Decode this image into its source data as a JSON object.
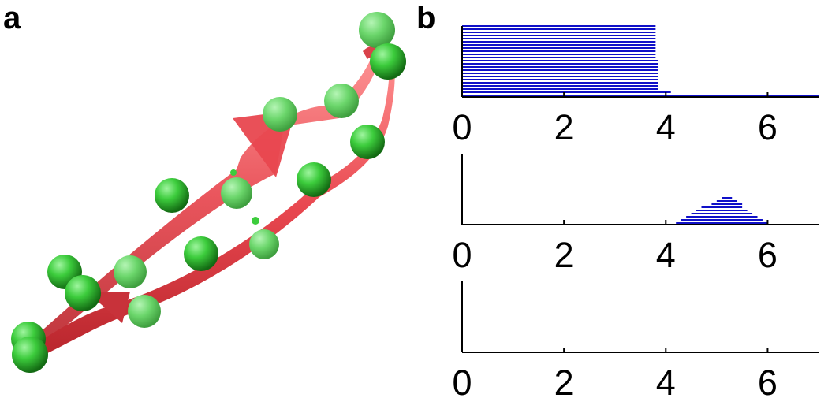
{
  "figure": {
    "panel_a_label": "a",
    "panel_b_label": "b"
  },
  "structure": {
    "ribbon_color": "#e8474f",
    "bead_color": "#2fb52f"
  },
  "chart_data": [
    {
      "type": "bar",
      "orientation": "horizontal",
      "xlim": [
        0,
        7
      ],
      "xticks": [
        0,
        2,
        4,
        6
      ],
      "tick_labels": [
        "0",
        "2",
        "4",
        "6"
      ],
      "color": "#1010c8",
      "segments": [
        {
          "start": 0,
          "end": 3.8
        },
        {
          "start": 0,
          "end": 3.8
        },
        {
          "start": 0,
          "end": 3.8
        },
        {
          "start": 0,
          "end": 3.8
        },
        {
          "start": 0,
          "end": 3.8
        },
        {
          "start": 0,
          "end": 3.8
        },
        {
          "start": 0,
          "end": 3.8
        },
        {
          "start": 0,
          "end": 3.8
        },
        {
          "start": 0,
          "end": 3.8
        },
        {
          "start": 0,
          "end": 3.8
        },
        {
          "start": 0,
          "end": 3.8
        },
        {
          "start": 0,
          "end": 3.85
        },
        {
          "start": 0,
          "end": 3.85
        },
        {
          "start": 0,
          "end": 3.85
        },
        {
          "start": 0,
          "end": 3.85
        },
        {
          "start": 0,
          "end": 3.85
        },
        {
          "start": 0,
          "end": 3.85
        },
        {
          "start": 0,
          "end": 3.85
        },
        {
          "start": 0,
          "end": 3.85
        },
        {
          "start": 0,
          "end": 3.85
        },
        {
          "start": 0,
          "end": 3.85
        },
        {
          "start": 0,
          "end": 4.1
        },
        {
          "start": 0,
          "end": 7.0
        }
      ]
    },
    {
      "type": "bar",
      "orientation": "horizontal",
      "xlim": [
        0,
        7
      ],
      "xticks": [
        0,
        2,
        4,
        6
      ],
      "tick_labels": [
        "0",
        "2",
        "4",
        "6"
      ],
      "color": "#1010c8",
      "segments": [
        {
          "start": 5.1,
          "end": 5.3
        },
        {
          "start": 5.0,
          "end": 5.4
        },
        {
          "start": 4.9,
          "end": 5.5
        },
        {
          "start": 4.7,
          "end": 5.5
        },
        {
          "start": 4.6,
          "end": 5.6
        },
        {
          "start": 4.5,
          "end": 5.7
        },
        {
          "start": 4.4,
          "end": 5.8
        },
        {
          "start": 4.3,
          "end": 5.9
        },
        {
          "start": 4.2,
          "end": 6.0
        }
      ]
    },
    {
      "type": "bar",
      "orientation": "horizontal",
      "xlim": [
        0,
        7
      ],
      "xticks": [
        0,
        2,
        4,
        6
      ],
      "tick_labels": [
        "0",
        "2",
        "4",
        "6"
      ],
      "color": "#1010c8",
      "segments": []
    }
  ]
}
